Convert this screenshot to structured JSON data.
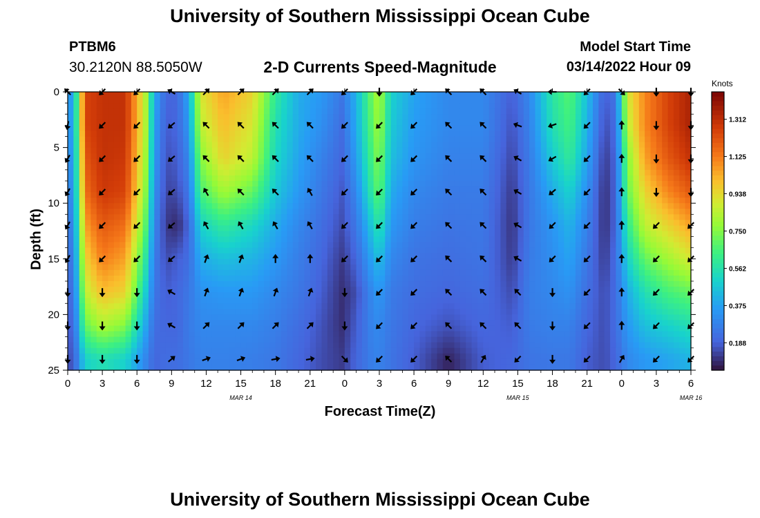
{
  "header": {
    "title": "University of Southern Mississippi Ocean Cube",
    "station": "PTBM6",
    "coords": "30.2120N  88.5050W",
    "subtitle": "2-D Currents Speed-Magnitude",
    "model_label": "Model Start Time",
    "model_time": "03/14/2022 Hour 09",
    "bottom_title": "University of Southern Mississippi Ocean Cube"
  },
  "chart_data": {
    "type": "heatmap",
    "title": "2-D Currents Speed-Magnitude",
    "xlabel": "Forecast Time(Z)",
    "ylabel": "Depth (ft)",
    "x_ticks": [
      "0",
      "3",
      "6",
      "9",
      "12",
      "15",
      "18",
      "21",
      "0",
      "3",
      "6",
      "9",
      "12",
      "15",
      "18",
      "21",
      "0",
      "3",
      "6"
    ],
    "x_range_hours": [
      0,
      54
    ],
    "date_labels": [
      {
        "label": "MAR 14",
        "hour": 15
      },
      {
        "label": "MAR 15",
        "hour": 39
      },
      {
        "label": "MAR 16",
        "hour": 54
      }
    ],
    "y_ticks": [
      0,
      5,
      10,
      15,
      20,
      25
    ],
    "ylim": [
      0,
      25
    ],
    "y_inverted": true,
    "colorbar": {
      "units": "Knots",
      "ticks": [
        "1.312",
        "1.125",
        "0.938",
        "0.750",
        "0.562",
        "0.375",
        "0.188"
      ],
      "tick_values": [
        1.312,
        1.125,
        0.938,
        0.75,
        0.562,
        0.375,
        0.188
      ],
      "range": [
        0.05,
        1.45
      ],
      "colormap": "turbo"
    },
    "arrow_times": [
      0,
      3,
      6,
      9,
      12,
      15,
      18,
      21,
      24,
      27,
      30,
      33,
      36,
      39,
      42,
      45,
      48,
      51,
      54
    ],
    "arrow_depths": [
      0,
      3,
      6,
      9,
      12,
      15,
      18,
      21,
      24
    ],
    "speed_profiles": [
      {
        "hour": 0,
        "speeds": [
          0.3,
          0.3,
          0.28,
          0.25,
          0.22,
          0.2,
          0.18,
          0.16,
          0.14
        ]
      },
      {
        "hour": 0.6,
        "speeds": [
          0.45,
          0.45,
          0.42,
          0.4,
          0.36,
          0.32,
          0.28,
          0.24,
          0.2
        ]
      },
      {
        "hour": 1.5,
        "speeds": [
          1.25,
          1.25,
          1.2,
          1.15,
          1.05,
          0.95,
          0.85,
          0.7,
          0.5
        ]
      },
      {
        "hour": 3,
        "speeds": [
          1.3,
          1.3,
          1.3,
          1.28,
          1.2,
          1.12,
          1.0,
          0.82,
          0.55
        ]
      },
      {
        "hour": 5,
        "speeds": [
          1.3,
          1.3,
          1.28,
          1.25,
          1.15,
          1.05,
          0.95,
          0.75,
          0.5
        ]
      },
      {
        "hour": 6.7,
        "speeds": [
          0.85,
          0.85,
          0.82,
          0.78,
          0.7,
          0.6,
          0.5,
          0.4,
          0.3
        ]
      },
      {
        "hour": 7.5,
        "speeds": [
          0.4,
          0.38,
          0.36,
          0.33,
          0.3,
          0.27,
          0.25,
          0.22,
          0.2
        ]
      },
      {
        "hour": 8.5,
        "speeds": [
          0.2,
          0.18,
          0.16,
          0.14,
          0.12,
          0.15,
          0.18,
          0.2,
          0.22
        ]
      },
      {
        "hour": 9.5,
        "speeds": [
          0.2,
          0.2,
          0.18,
          0.15,
          0.09,
          0.18,
          0.2,
          0.2,
          0.22
        ]
      },
      {
        "hour": 10.5,
        "speeds": [
          0.4,
          0.35,
          0.3,
          0.25,
          0.2,
          0.22,
          0.25,
          0.26,
          0.25
        ]
      },
      {
        "hour": 11.5,
        "speeds": [
          0.9,
          0.85,
          0.75,
          0.65,
          0.5,
          0.4,
          0.33,
          0.3,
          0.28
        ]
      },
      {
        "hour": 13.5,
        "speeds": [
          1.05,
          1.0,
          0.95,
          0.8,
          0.6,
          0.45,
          0.35,
          0.3,
          0.28
        ]
      },
      {
        "hour": 16,
        "speeds": [
          0.95,
          0.9,
          0.85,
          0.7,
          0.52,
          0.42,
          0.35,
          0.3,
          0.27
        ]
      },
      {
        "hour": 18,
        "speeds": [
          0.6,
          0.55,
          0.52,
          0.47,
          0.4,
          0.35,
          0.3,
          0.27,
          0.25
        ]
      },
      {
        "hour": 20,
        "speeds": [
          0.4,
          0.4,
          0.38,
          0.35,
          0.3,
          0.27,
          0.25,
          0.22,
          0.2
        ]
      },
      {
        "hour": 22,
        "speeds": [
          0.35,
          0.32,
          0.28,
          0.25,
          0.22,
          0.2,
          0.18,
          0.16,
          0.15
        ]
      },
      {
        "hour": 23.8,
        "speeds": [
          0.25,
          0.22,
          0.2,
          0.17,
          0.15,
          0.12,
          0.1,
          0.1,
          0.12
        ]
      },
      {
        "hour": 25,
        "speeds": [
          0.42,
          0.4,
          0.36,
          0.3,
          0.25,
          0.2,
          0.15,
          0.18,
          0.2
        ]
      },
      {
        "hour": 26.5,
        "speeds": [
          0.75,
          0.72,
          0.68,
          0.62,
          0.5,
          0.4,
          0.32,
          0.3,
          0.28
        ]
      },
      {
        "hour": 27,
        "speeds": [
          0.82,
          0.8,
          0.75,
          0.7,
          0.58,
          0.45,
          0.35,
          0.3,
          0.28
        ]
      },
      {
        "hour": 28,
        "speeds": [
          0.5,
          0.48,
          0.45,
          0.4,
          0.35,
          0.3,
          0.26,
          0.25,
          0.24
        ]
      },
      {
        "hour": 30,
        "speeds": [
          0.38,
          0.36,
          0.34,
          0.3,
          0.27,
          0.24,
          0.22,
          0.2,
          0.18
        ]
      },
      {
        "hour": 33,
        "speeds": [
          0.3,
          0.3,
          0.28,
          0.26,
          0.24,
          0.22,
          0.2,
          0.16,
          0.08
        ]
      },
      {
        "hour": 36,
        "speeds": [
          0.3,
          0.3,
          0.28,
          0.26,
          0.25,
          0.24,
          0.22,
          0.2,
          0.18
        ]
      },
      {
        "hour": 38.5,
        "speeds": [
          0.18,
          0.16,
          0.14,
          0.12,
          0.11,
          0.12,
          0.15,
          0.18,
          0.2
        ]
      },
      {
        "hour": 40,
        "speeds": [
          0.3,
          0.28,
          0.26,
          0.25,
          0.25,
          0.26,
          0.27,
          0.26,
          0.24
        ]
      },
      {
        "hour": 42,
        "speeds": [
          0.58,
          0.55,
          0.48,
          0.4,
          0.34,
          0.32,
          0.3,
          0.28,
          0.25
        ]
      },
      {
        "hour": 43.5,
        "speeds": [
          0.68,
          0.65,
          0.6,
          0.5,
          0.42,
          0.38,
          0.33,
          0.28,
          0.25
        ]
      },
      {
        "hour": 45,
        "speeds": [
          0.45,
          0.42,
          0.38,
          0.32,
          0.28,
          0.25,
          0.22,
          0.2,
          0.18
        ]
      },
      {
        "hour": 46.5,
        "speeds": [
          0.18,
          0.15,
          0.12,
          0.1,
          0.1,
          0.12,
          0.15,
          0.15,
          0.15
        ]
      },
      {
        "hour": 47.5,
        "speeds": [
          0.25,
          0.22,
          0.2,
          0.2,
          0.2,
          0.22,
          0.22,
          0.22,
          0.2
        ]
      },
      {
        "hour": 48.5,
        "speeds": [
          0.9,
          0.85,
          0.75,
          0.7,
          0.6,
          0.5,
          0.4,
          0.35,
          0.3
        ]
      },
      {
        "hour": 50,
        "speeds": [
          1.1,
          1.1,
          1.05,
          0.95,
          0.85,
          0.7,
          0.55,
          0.45,
          0.35
        ]
      },
      {
        "hour": 52,
        "speeds": [
          1.25,
          1.25,
          1.2,
          1.1,
          0.95,
          0.8,
          0.65,
          0.5,
          0.38
        ]
      },
      {
        "hour": 54,
        "speeds": [
          1.35,
          1.35,
          1.3,
          1.2,
          1.05,
          0.9,
          0.7,
          0.55,
          0.42
        ]
      }
    ],
    "directions": [
      [
        315,
        190,
        210,
        210,
        210,
        210,
        180,
        180,
        180
      ],
      [
        225,
        225,
        225,
        225,
        225,
        225,
        180,
        180,
        180
      ],
      [
        225,
        225,
        225,
        225,
        225,
        225,
        180,
        180,
        180
      ],
      [
        300,
        230,
        230,
        230,
        230,
        230,
        300,
        300,
        50
      ],
      [
        45,
        315,
        315,
        330,
        330,
        20,
        20,
        45,
        70
      ],
      [
        45,
        315,
        315,
        315,
        330,
        20,
        20,
        45,
        70
      ],
      [
        45,
        315,
        315,
        315,
        330,
        0,
        20,
        45,
        80
      ],
      [
        45,
        315,
        315,
        330,
        330,
        0,
        20,
        45,
        80
      ],
      [
        225,
        225,
        225,
        225,
        225,
        225,
        180,
        180,
        135
      ],
      [
        180,
        225,
        225,
        225,
        225,
        225,
        225,
        225,
        225
      ],
      [
        225,
        225,
        225,
        225,
        225,
        225,
        225,
        225,
        225
      ],
      [
        315,
        315,
        315,
        315,
        315,
        315,
        315,
        315,
        315
      ],
      [
        315,
        315,
        315,
        315,
        315,
        315,
        315,
        315,
        30
      ],
      [
        300,
        290,
        300,
        300,
        300,
        300,
        315,
        315,
        225
      ],
      [
        270,
        250,
        240,
        230,
        225,
        225,
        180,
        180,
        180
      ],
      [
        225,
        225,
        225,
        225,
        225,
        225,
        225,
        225,
        225
      ],
      [
        135,
        0,
        0,
        0,
        0,
        0,
        0,
        0,
        30
      ],
      [
        180,
        180,
        180,
        180,
        225,
        225,
        225,
        225,
        225
      ],
      [
        180,
        180,
        180,
        180,
        225,
        225,
        225,
        225,
        225
      ]
    ]
  }
}
